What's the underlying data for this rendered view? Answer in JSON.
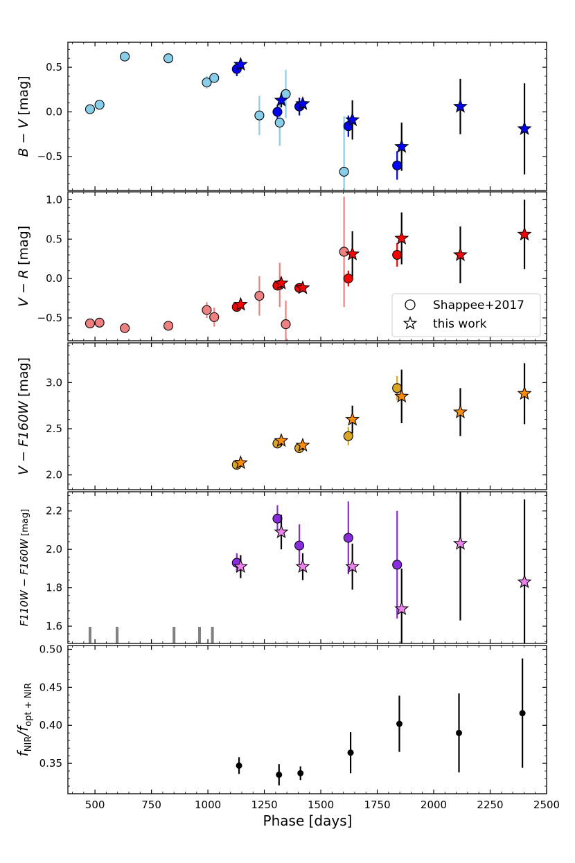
{
  "chart_data": {
    "type": "scatter",
    "xlabel": "Phase [days]",
    "xlim": [
      380,
      2500
    ],
    "xticks": [
      500,
      750,
      1000,
      1250,
      1500,
      1750,
      2000,
      2250,
      2500
    ],
    "shared_x": true,
    "legend": {
      "placement": "lower-right of panel 2",
      "entries": [
        {
          "label": "Shappee+2017",
          "marker": "circle"
        },
        {
          "label": "this work",
          "marker": "star"
        }
      ]
    },
    "panels": [
      {
        "id": "b_minus_v",
        "ylabel": [
          "B − V",
          " [mag]"
        ],
        "ylim": [
          -0.88,
          0.78
        ],
        "yticks": [
          -0.5,
          0.0,
          0.5
        ],
        "yticklabels": [
          "−0.5",
          "0.0",
          "0.5"
        ],
        "series": [
          {
            "name": "Shappee+2017",
            "marker": "circle",
            "color": "#87ceeb",
            "points": [
              {
                "x": 478,
                "y": 0.03
              },
              {
                "x": 520,
                "y": 0.08
              },
              {
                "x": 632,
                "y": 0.62
              },
              {
                "x": 825,
                "y": 0.6
              },
              {
                "x": 995,
                "y": 0.33,
                "err": 0.07
              },
              {
                "x": 1028,
                "y": 0.38
              },
              {
                "x": 1228,
                "y": -0.04,
                "err": 0.22
              },
              {
                "x": 1318,
                "y": -0.12,
                "err": 0.26
              },
              {
                "x": 1345,
                "y": 0.2,
                "err": 0.27
              },
              {
                "x": 1603,
                "y": -0.67,
                "err": 0.62
              }
            ]
          },
          {
            "name": "Shappee+2017",
            "marker": "circle",
            "color": "#0000ff",
            "points": [
              {
                "x": 1128,
                "y": 0.48,
                "err": 0.08
              },
              {
                "x": 1308,
                "y": 0.0,
                "err": 0.08
              },
              {
                "x": 1405,
                "y": 0.06,
                "err": 0.1
              },
              {
                "x": 1622,
                "y": -0.16,
                "err": 0.12
              },
              {
                "x": 1838,
                "y": -0.6,
                "err": 0.16
              }
            ]
          },
          {
            "name": "this work",
            "marker": "star",
            "color": "#0000ff",
            "points": [
              {
                "x": 1145,
                "y": 0.53,
                "err": 0.06
              },
              {
                "x": 1325,
                "y": 0.13,
                "err": 0.08
              },
              {
                "x": 1420,
                "y": 0.09,
                "err": 0.07
              },
              {
                "x": 1640,
                "y": -0.09,
                "err": 0.22
              },
              {
                "x": 1858,
                "y": -0.39,
                "err": 0.27
              },
              {
                "x": 2118,
                "y": 0.06,
                "err": 0.31
              },
              {
                "x": 2402,
                "y": -0.19,
                "err": 0.51
              }
            ]
          }
        ]
      },
      {
        "id": "v_minus_r",
        "ylabel": [
          "V − R",
          " [mag]"
        ],
        "ylim": [
          -0.79,
          1.1
        ],
        "yticks": [
          -0.5,
          0.0,
          0.5,
          1.0
        ],
        "yticklabels": [
          "−0.5",
          "0.0",
          "0.5",
          "1.0"
        ],
        "series": [
          {
            "name": "Shappee+2017",
            "marker": "circle",
            "color": "#f08080",
            "points": [
              {
                "x": 478,
                "y": -0.57
              },
              {
                "x": 520,
                "y": -0.56
              },
              {
                "x": 632,
                "y": -0.63
              },
              {
                "x": 825,
                "y": -0.6
              },
              {
                "x": 995,
                "y": -0.4,
                "err": 0.1
              },
              {
                "x": 1028,
                "y": -0.49,
                "err": 0.12
              },
              {
                "x": 1228,
                "y": -0.22,
                "err": 0.25
              },
              {
                "x": 1318,
                "y": -0.08,
                "err": 0.28
              },
              {
                "x": 1345,
                "y": -0.58,
                "err": 0.3
              },
              {
                "x": 1603,
                "y": 0.34,
                "err": 0.7
              }
            ]
          },
          {
            "name": "Shappee+2017",
            "marker": "circle",
            "color": "#ff0000",
            "points": [
              {
                "x": 1128,
                "y": -0.36,
                "err": 0.04
              },
              {
                "x": 1308,
                "y": -0.09,
                "err": 0.05
              },
              {
                "x": 1405,
                "y": -0.12,
                "err": 0.05
              },
              {
                "x": 1622,
                "y": 0.0,
                "err": 0.1
              },
              {
                "x": 1838,
                "y": 0.3,
                "err": 0.15
              }
            ]
          },
          {
            "name": "this work",
            "marker": "star",
            "color": "#ff0000",
            "points": [
              {
                "x": 1145,
                "y": -0.33,
                "err": 0.04
              },
              {
                "x": 1325,
                "y": -0.06,
                "err": 0.06
              },
              {
                "x": 1420,
                "y": -0.12,
                "err": 0.05
              },
              {
                "x": 1640,
                "y": 0.31,
                "err": 0.29
              },
              {
                "x": 1858,
                "y": 0.51,
                "err": 0.33
              },
              {
                "x": 2118,
                "y": 0.3,
                "err": 0.36
              },
              {
                "x": 2402,
                "y": 0.56,
                "err": 0.44
              }
            ]
          }
        ]
      },
      {
        "id": "v_minus_f160w",
        "ylabel": [
          "V − F160W",
          " [mag]"
        ],
        "ylim": [
          1.84,
          3.43
        ],
        "yticks": [
          2.0,
          2.5,
          3.0
        ],
        "yticklabels": [
          "2.0",
          "2.5",
          "3.0"
        ],
        "series": [
          {
            "name": "Shappee+2017",
            "marker": "circle",
            "color": "#daa520",
            "points": [
              {
                "x": 1128,
                "y": 2.11,
                "err": 0.03
              },
              {
                "x": 1308,
                "y": 2.34,
                "err": 0.04
              },
              {
                "x": 1405,
                "y": 2.29,
                "err": 0.04
              },
              {
                "x": 1622,
                "y": 2.42,
                "err": 0.1
              },
              {
                "x": 1838,
                "y": 2.94,
                "err": 0.13
              }
            ]
          },
          {
            "name": "this work",
            "marker": "star",
            "color": "#ff8c00",
            "points": [
              {
                "x": 1145,
                "y": 2.13,
                "err": 0.04
              },
              {
                "x": 1325,
                "y": 2.37,
                "err": 0.06
              },
              {
                "x": 1420,
                "y": 2.32,
                "err": 0.05
              },
              {
                "x": 1640,
                "y": 2.6,
                "err": 0.15
              },
              {
                "x": 1858,
                "y": 2.85,
                "err": 0.29
              },
              {
                "x": 2118,
                "y": 2.68,
                "err": 0.26
              },
              {
                "x": 2402,
                "y": 2.88,
                "err": 0.33
              }
            ]
          }
        ]
      },
      {
        "id": "f110w_minus_f160w",
        "ylabel": [
          "F110W − F160W",
          " [mag]"
        ],
        "ylim": [
          1.51,
          2.3
        ],
        "yticks": [
          1.6,
          1.8,
          2.0,
          2.2
        ],
        "yticklabels": [
          "1.6",
          "1.8",
          "2.0",
          "2.2"
        ],
        "epoch_marks": [
          478,
          598,
          850,
          963,
          1020
        ],
        "series": [
          {
            "name": "Shappee+2017",
            "marker": "circle",
            "color": "#8a2be2",
            "points": [
              {
                "x": 1128,
                "y": 1.93,
                "err": 0.05
              },
              {
                "x": 1308,
                "y": 2.16,
                "err": 0.07
              },
              {
                "x": 1405,
                "y": 2.02,
                "err": 0.11
              },
              {
                "x": 1622,
                "y": 2.06,
                "err": 0.19
              },
              {
                "x": 1838,
                "y": 1.92,
                "err": 0.28
              }
            ]
          },
          {
            "name": "this work",
            "marker": "star",
            "color": "#ee82ee",
            "points": [
              {
                "x": 1145,
                "y": 1.91,
                "err": 0.06
              },
              {
                "x": 1325,
                "y": 2.09,
                "err": 0.09
              },
              {
                "x": 1420,
                "y": 1.91,
                "err": 0.07
              },
              {
                "x": 1640,
                "y": 1.91,
                "err": 0.12
              },
              {
                "x": 1858,
                "y": 1.69,
                "err": 0.21
              },
              {
                "x": 2118,
                "y": 2.03,
                "err": 0.4
              },
              {
                "x": 2402,
                "y": 1.83,
                "err": 0.43
              }
            ]
          }
        ]
      },
      {
        "id": "nir_fraction",
        "ylabel": [
          "f",
          "NIR",
          "/f",
          "opt + NIR"
        ],
        "ylim": [
          0.31,
          0.505
        ],
        "yticks": [
          0.35,
          0.4,
          0.45,
          0.5
        ],
        "yticklabels": [
          "0.35",
          "0.40",
          "0.45",
          "0.50"
        ],
        "series": [
          {
            "name": "this work",
            "marker": "dot",
            "color": "#000000",
            "points": [
              {
                "x": 1138,
                "y": 0.347,
                "err": 0.011
              },
              {
                "x": 1315,
                "y": 0.335,
                "err": 0.014
              },
              {
                "x": 1410,
                "y": 0.337,
                "err": 0.009
              },
              {
                "x": 1632,
                "y": 0.364,
                "err": 0.027
              },
              {
                "x": 1848,
                "y": 0.402,
                "err": 0.037
              },
              {
                "x": 2112,
                "y": 0.39,
                "err": 0.052
              },
              {
                "x": 2393,
                "y": 0.416,
                "err": 0.072
              }
            ]
          }
        ]
      }
    ]
  }
}
